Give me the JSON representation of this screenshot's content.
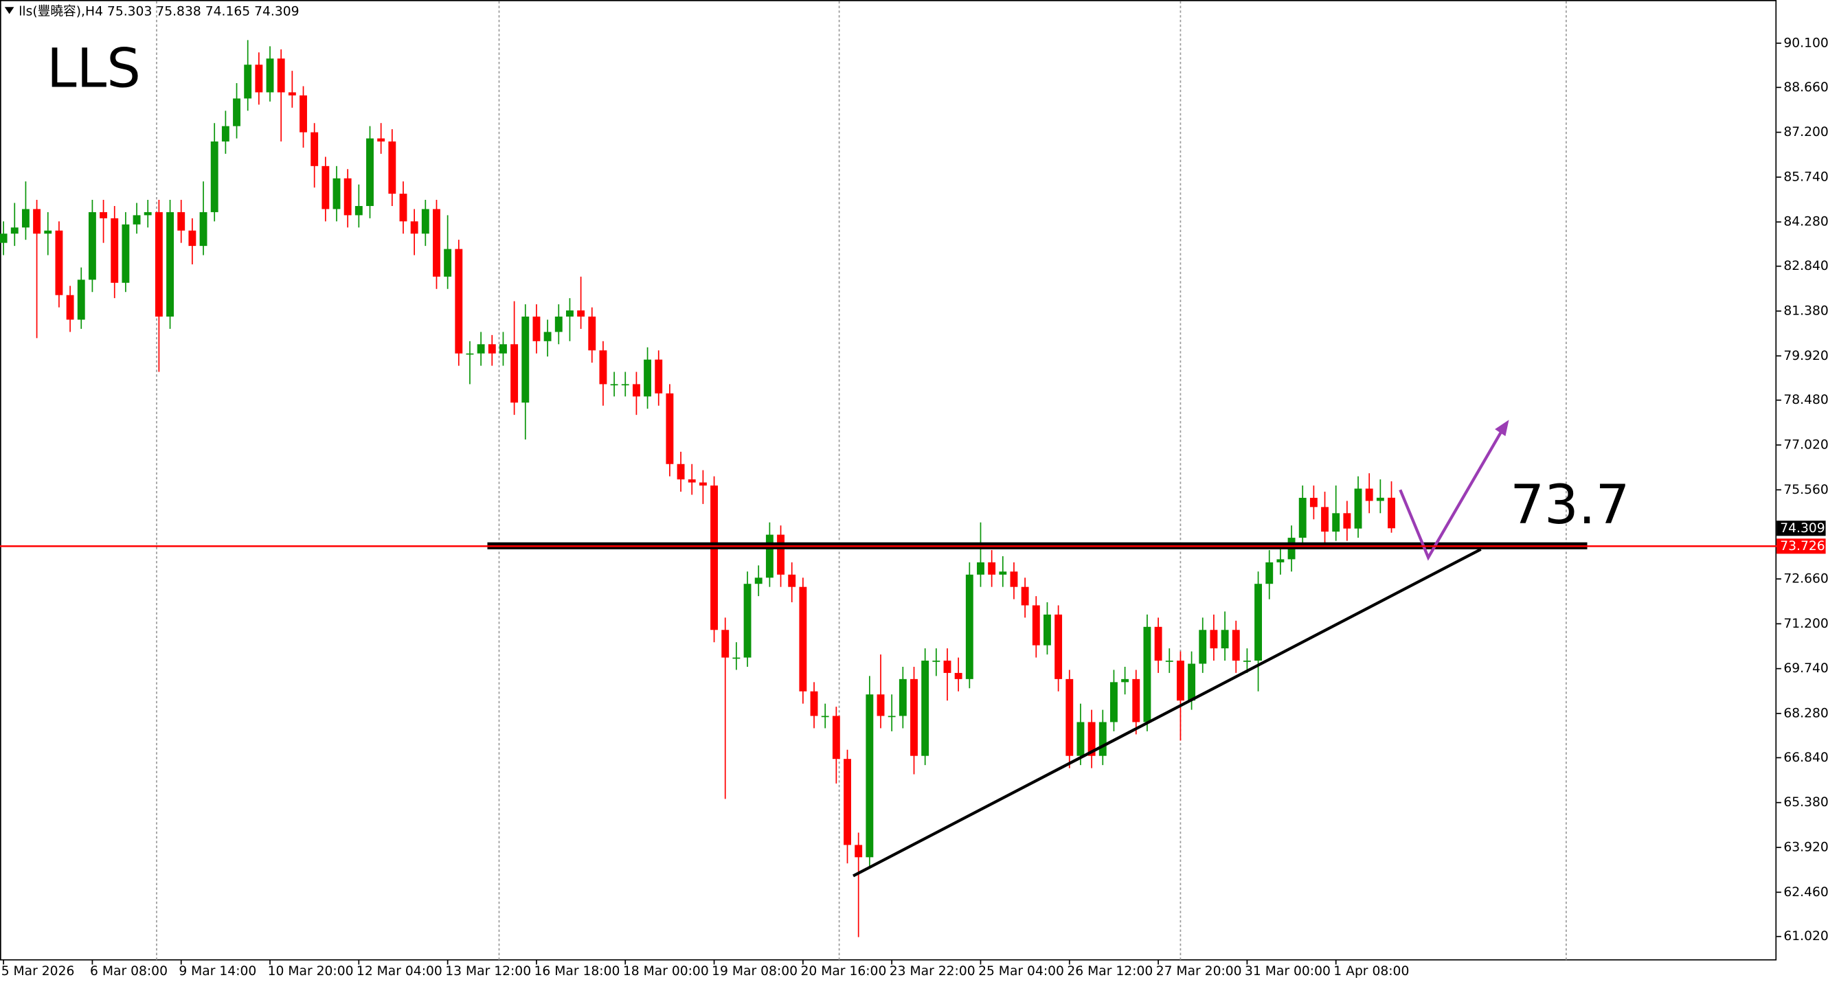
{
  "chart_data": {
    "type": "candlestick",
    "header": "lls(豐曉容),H4  75.303 75.838 74.165 74.309",
    "title": "LLS",
    "annotation": "73.7",
    "up_color": "#0a960a",
    "down_color": "#ff0000",
    "ylim": [
      60.26,
      91.43
    ],
    "yticks": [
      {
        "value": 61.02,
        "label": "61.020"
      },
      {
        "value": 62.46,
        "label": "62.460"
      },
      {
        "value": 63.92,
        "label": "63.920"
      },
      {
        "value": 65.38,
        "label": "65.380"
      },
      {
        "value": 66.84,
        "label": "66.840"
      },
      {
        "value": 68.28,
        "label": "68.280"
      },
      {
        "value": 69.74,
        "label": "69.740"
      },
      {
        "value": 71.2,
        "label": "71.200"
      },
      {
        "value": 72.66,
        "label": "72.660"
      },
      {
        "value": 75.56,
        "label": "75.560"
      },
      {
        "value": 77.02,
        "label": "77.020"
      },
      {
        "value": 78.48,
        "label": "78.480"
      },
      {
        "value": 79.92,
        "label": "79.920"
      },
      {
        "value": 81.38,
        "label": "81.380"
      },
      {
        "value": 82.84,
        "label": "82.840"
      },
      {
        "value": 84.28,
        "label": "84.280"
      },
      {
        "value": 85.74,
        "label": "85.740"
      },
      {
        "value": 87.2,
        "label": "87.200"
      },
      {
        "value": 88.66,
        "label": "88.660"
      },
      {
        "value": 90.1,
        "label": "90.100"
      }
    ],
    "price_markers": [
      {
        "value": 74.309,
        "color": "#000000"
      },
      {
        "value": 73.726,
        "color": "#ff0000"
      }
    ],
    "categories": [
      "5 Mar 2026",
      null,
      null,
      null,
      null,
      null,
      null,
      null,
      "6 Mar 08:00",
      null,
      null,
      null,
      null,
      null,
      null,
      null,
      "9 Mar 14:00",
      null,
      null,
      null,
      null,
      null,
      null,
      null,
      "10 Mar 20:00",
      null,
      null,
      null,
      null,
      null,
      null,
      null,
      "12 Mar 04:00",
      null,
      null,
      null,
      null,
      null,
      null,
      null,
      "13 Mar 12:00",
      null,
      null,
      null,
      null,
      null,
      null,
      null,
      "16 Mar 18:00",
      null,
      null,
      null,
      null,
      null,
      null,
      null,
      "18 Mar 00:00",
      null,
      null,
      null,
      null,
      null,
      null,
      null,
      "19 Mar 08:00",
      null,
      null,
      null,
      null,
      null,
      null,
      null,
      "20 Mar 16:00",
      null,
      null,
      null,
      null,
      null,
      null,
      null,
      "23 Mar 22:00",
      null,
      null,
      null,
      null,
      null,
      null,
      null,
      "25 Mar 04:00",
      null,
      null,
      null,
      null,
      null,
      null,
      null,
      "26 Mar 12:00",
      null,
      null,
      null,
      null,
      null,
      null,
      null,
      "27 Mar 20:00",
      null,
      null,
      null,
      null,
      null,
      null,
      null,
      "31 Mar 00:00",
      null,
      null,
      null,
      null,
      null,
      null,
      null,
      "1 Apr 08:00",
      null,
      null,
      null,
      null,
      null
    ],
    "open": [
      83.6,
      83.9,
      84.1,
      84.7,
      83.9,
      84.0,
      81.9,
      81.1,
      82.4,
      84.6,
      84.4,
      82.3,
      84.2,
      84.5,
      84.6,
      81.2,
      84.6,
      84.0,
      83.5,
      84.6,
      86.9,
      87.4,
      88.3,
      89.4,
      88.5,
      89.6,
      88.5,
      88.4,
      87.2,
      86.1,
      84.7,
      85.7,
      84.5,
      84.8,
      87.0,
      86.9,
      85.2,
      84.3,
      83.9,
      84.7,
      82.5,
      83.4,
      80.0,
      80.0,
      80.3,
      80.0,
      80.3,
      78.4,
      81.2,
      80.4,
      80.7,
      81.2,
      81.4,
      81.2,
      80.1,
      79.0,
      79.0,
      79.0,
      78.6,
      79.8,
      78.7,
      76.4,
      75.9,
      75.8,
      75.7,
      71.0,
      70.1,
      70.1,
      72.5,
      72.7,
      74.1,
      72.8,
      72.4,
      69.0,
      68.2,
      68.2,
      66.8,
      64.0,
      63.6,
      68.9,
      68.2,
      68.2,
      69.4,
      66.9,
      70.0,
      70.0,
      69.6,
      69.4,
      72.8,
      73.2,
      72.8,
      72.9,
      72.4,
      71.8,
      70.5,
      71.5,
      69.4,
      66.9,
      68.0,
      66.9,
      68.0,
      69.3,
      69.4,
      68.0,
      71.1,
      70.0,
      70.0,
      68.7,
      69.9,
      71.0,
      70.4,
      71.0,
      70.0,
      70.0,
      72.5,
      73.2,
      73.3,
      74.0,
      75.3,
      75.0,
      74.2,
      74.8,
      74.3,
      75.6,
      75.2,
      75.303
    ],
    "high": [
      84.3,
      84.9,
      85.6,
      85.0,
      84.6,
      84.3,
      82.2,
      82.8,
      85.0,
      85.0,
      84.8,
      84.6,
      84.9,
      85.0,
      85.0,
      85.0,
      85.0,
      84.4,
      85.6,
      87.5,
      87.9,
      88.8,
      90.2,
      89.8,
      90.0,
      89.9,
      89.2,
      88.7,
      87.5,
      86.4,
      86.1,
      86.0,
      85.5,
      87.4,
      87.5,
      87.3,
      85.6,
      84.7,
      85.0,
      85.0,
      84.5,
      83.7,
      80.4,
      80.7,
      80.6,
      80.7,
      81.7,
      81.6,
      81.6,
      81.1,
      81.6,
      81.8,
      82.5,
      81.5,
      80.4,
      79.4,
      79.4,
      79.4,
      80.2,
      80.1,
      79.0,
      76.8,
      76.4,
      76.2,
      76.0,
      71.4,
      70.6,
      72.9,
      73.1,
      74.5,
      74.4,
      73.2,
      72.7,
      69.3,
      68.6,
      68.5,
      67.1,
      64.4,
      69.5,
      70.2,
      68.9,
      69.8,
      69.8,
      70.4,
      70.4,
      70.4,
      70.1,
      73.2,
      74.5,
      73.6,
      73.4,
      73.2,
      72.7,
      72.1,
      71.9,
      71.8,
      69.7,
      68.6,
      68.4,
      68.4,
      69.7,
      69.8,
      69.7,
      71.5,
      71.4,
      70.4,
      70.3,
      70.3,
      71.4,
      71.5,
      71.6,
      71.3,
      70.4,
      72.9,
      73.6,
      73.7,
      74.4,
      75.7,
      75.7,
      75.5,
      75.7,
      75.2,
      76.0,
      76.1,
      75.9,
      75.838
    ],
    "low": [
      83.2,
      83.5,
      83.7,
      80.5,
      83.2,
      81.5,
      80.7,
      80.8,
      82.0,
      83.6,
      81.8,
      82.0,
      83.9,
      84.1,
      79.4,
      80.8,
      83.6,
      82.9,
      83.2,
      84.3,
      86.5,
      87.0,
      87.9,
      88.1,
      88.2,
      86.9,
      88.0,
      86.7,
      85.4,
      84.3,
      84.3,
      84.1,
      84.1,
      84.4,
      86.5,
      84.8,
      83.9,
      83.2,
      83.5,
      82.1,
      82.1,
      79.6,
      79.0,
      79.6,
      79.6,
      79.6,
      78.0,
      77.2,
      80.0,
      79.9,
      80.3,
      80.4,
      80.8,
      79.7,
      78.3,
      78.6,
      78.6,
      78.0,
      78.2,
      78.3,
      76.0,
      75.5,
      75.4,
      75.1,
      70.6,
      65.5,
      69.7,
      69.8,
      72.1,
      72.4,
      72.4,
      71.9,
      68.6,
      67.8,
      67.8,
      66.0,
      63.4,
      61.0,
      63.3,
      67.8,
      67.7,
      67.8,
      66.3,
      66.6,
      69.5,
      68.7,
      69.0,
      69.1,
      72.4,
      72.4,
      72.4,
      72.0,
      71.4,
      70.1,
      70.2,
      69.0,
      66.5,
      66.6,
      66.5,
      66.6,
      67.7,
      68.9,
      67.6,
      67.7,
      69.6,
      69.6,
      67.4,
      68.4,
      69.6,
      70.0,
      70.0,
      69.6,
      69.6,
      69.0,
      72.0,
      72.8,
      72.9,
      73.7,
      74.6,
      73.8,
      73.9,
      73.9,
      74.0,
      74.8,
      74.8,
      74.165
    ],
    "close": [
      83.9,
      84.1,
      84.7,
      83.9,
      84.0,
      81.9,
      81.1,
      82.4,
      84.6,
      84.4,
      82.3,
      84.2,
      84.5,
      84.6,
      81.2,
      84.6,
      84.0,
      83.5,
      84.6,
      86.9,
      87.4,
      88.3,
      89.4,
      88.5,
      89.6,
      88.5,
      88.4,
      87.2,
      86.1,
      84.7,
      85.7,
      84.5,
      84.8,
      87.0,
      86.9,
      85.2,
      84.3,
      83.9,
      84.7,
      82.5,
      83.4,
      80.0,
      80.0,
      80.3,
      80.0,
      80.3,
      78.4,
      81.2,
      80.4,
      80.7,
      81.2,
      81.4,
      81.2,
      80.1,
      79.0,
      79.0,
      79.0,
      78.6,
      79.8,
      78.7,
      76.4,
      75.9,
      75.8,
      75.7,
      71.0,
      70.1,
      70.1,
      72.5,
      72.7,
      74.1,
      72.8,
      72.4,
      69.0,
      68.2,
      68.2,
      66.8,
      64.0,
      63.6,
      68.9,
      68.2,
      68.2,
      69.4,
      66.9,
      70.0,
      70.0,
      69.6,
      69.4,
      72.8,
      73.2,
      72.8,
      72.9,
      72.4,
      71.8,
      70.5,
      71.5,
      69.4,
      66.9,
      68.0,
      66.9,
      68.0,
      69.3,
      69.4,
      68.0,
      71.1,
      70.0,
      70.0,
      68.7,
      69.9,
      71.0,
      70.4,
      71.0,
      70.0,
      70.0,
      72.5,
      73.2,
      73.3,
      74.0,
      75.3,
      75.0,
      74.2,
      74.8,
      74.3,
      75.6,
      75.2,
      75.303,
      74.309
    ]
  }
}
